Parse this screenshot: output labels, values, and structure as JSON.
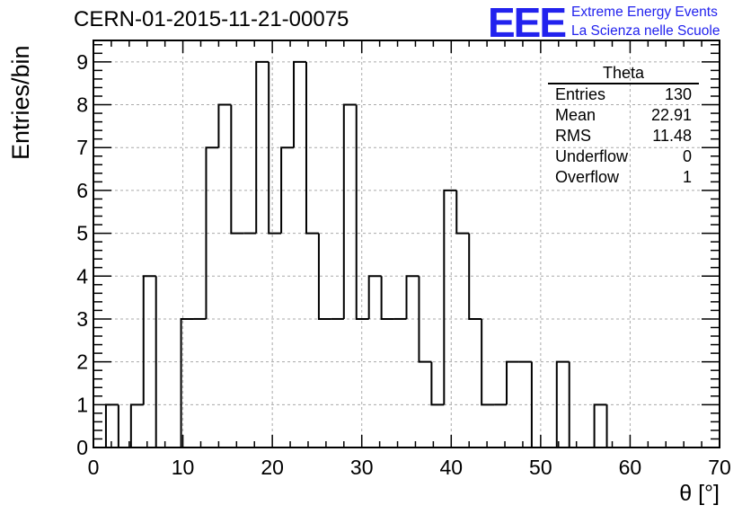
{
  "title": "CERN-01-2015-11-21-00075",
  "logo": {
    "mark": "EEE",
    "line1": "Extreme Energy Events",
    "line2": "La Scienza nelle Scuole",
    "color": "#2222ee"
  },
  "stats": {
    "title": "Theta",
    "rows": [
      {
        "label": "Entries",
        "value": "130"
      },
      {
        "label": "Mean",
        "value": "22.91"
      },
      {
        "label": "RMS",
        "value": "11.48"
      },
      {
        "label": "Underflow",
        "value": "0"
      },
      {
        "label": "Overflow",
        "value": "1"
      }
    ]
  },
  "chart_data": {
    "type": "bar",
    "histogram": true,
    "title": "CERN-01-2015-11-21-00075",
    "xlabel": "θ [°]",
    "ylabel": "Entries/bin",
    "xlim": [
      0,
      70
    ],
    "ylim": [
      0,
      9.5
    ],
    "grid": true,
    "bin_width": 1.4,
    "bin_start": 0,
    "values": [
      0,
      1,
      0,
      1,
      4,
      0,
      0,
      3,
      3,
      7,
      8,
      5,
      5,
      9,
      5,
      7,
      9,
      5,
      3,
      3,
      8,
      3,
      4,
      3,
      3,
      4,
      2,
      1,
      6,
      5,
      3,
      1,
      1,
      2,
      2,
      0,
      0,
      2,
      0,
      0,
      1,
      0,
      0,
      0,
      0,
      0,
      0,
      0,
      0,
      0
    ],
    "x_ticks": [
      "0",
      "10",
      "20",
      "30",
      "40",
      "50",
      "60",
      "70"
    ],
    "y_ticks": [
      "0",
      "1",
      "2",
      "3",
      "4",
      "5",
      "6",
      "7",
      "8",
      "9"
    ]
  }
}
